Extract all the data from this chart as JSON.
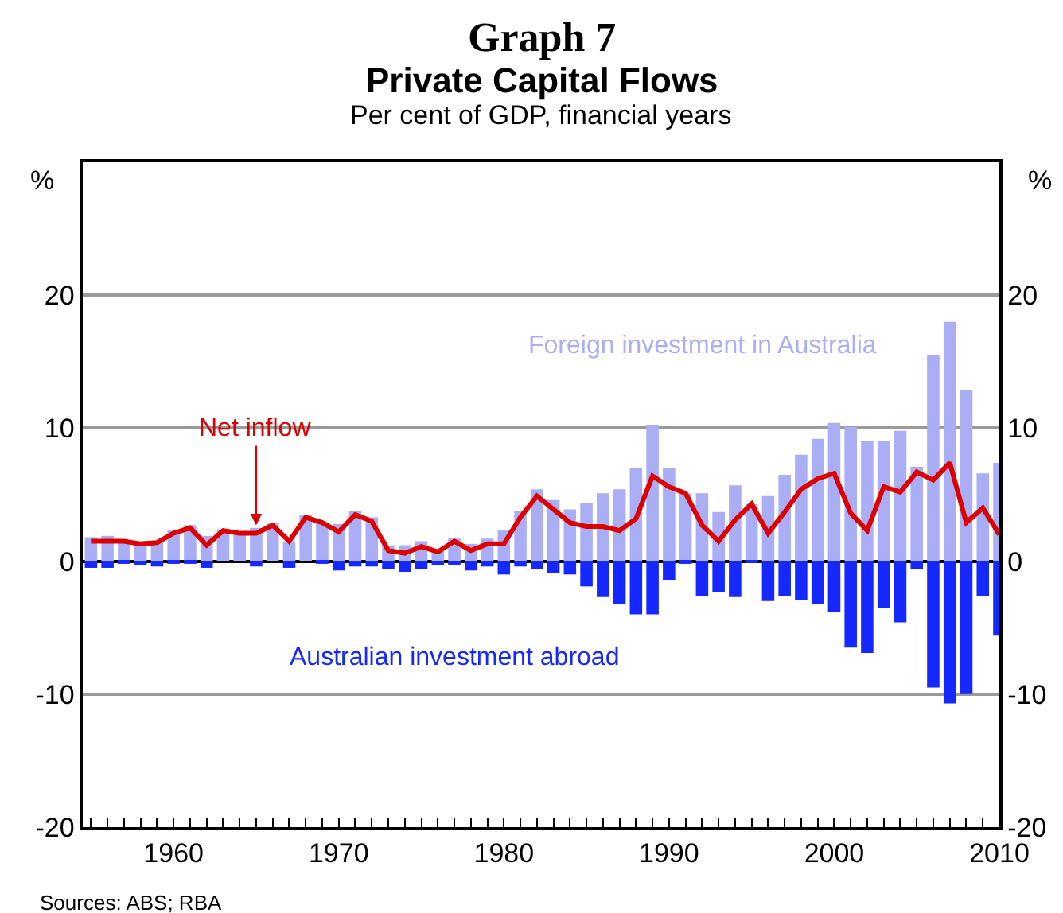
{
  "chart_data": {
    "type": "bar",
    "title": "Graph 7\nPrivate Capital Flows",
    "subtitle": "Per cent of GDP, financial years",
    "ylabel": "%",
    "y2label": "%",
    "x": [
      1955,
      1956,
      1957,
      1958,
      1959,
      1960,
      1961,
      1962,
      1963,
      1964,
      1965,
      1966,
      1967,
      1968,
      1969,
      1970,
      1971,
      1972,
      1973,
      1974,
      1975,
      1976,
      1977,
      1978,
      1979,
      1980,
      1981,
      1982,
      1983,
      1984,
      1985,
      1986,
      1987,
      1988,
      1989,
      1990,
      1991,
      1992,
      1993,
      1994,
      1995,
      1996,
      1997,
      1998,
      1999,
      2000,
      2001,
      2002,
      2003,
      2004,
      2005,
      2006,
      2007,
      2008,
      2009,
      2010
    ],
    "stacked": true,
    "series": [
      {
        "name": "Foreign investment in Australia",
        "color": "#a9aef5",
        "values": [
          1.8,
          1.9,
          1.5,
          1.5,
          1.5,
          2.3,
          2.7,
          1.9,
          2.4,
          2.1,
          2.5,
          2.9,
          1.5,
          3.5,
          2.9,
          2.8,
          3.8,
          3.3,
          1.2,
          1.2,
          1.5,
          0.8,
          1.7,
          1.3,
          1.7,
          2.3,
          3.8,
          5.4,
          4.6,
          3.9,
          4.4,
          5.1,
          5.4,
          7.0,
          10.2,
          7.0,
          5.1,
          5.1,
          3.7,
          5.7,
          4.3,
          4.9,
          6.5,
          8.0,
          9.2,
          10.4,
          10.1,
          9.0,
          9.0,
          9.8,
          7.1,
          15.5,
          18.0,
          12.9,
          6.6,
          7.4
        ]
      },
      {
        "name": "Australian investment abroad",
        "color": "#1428ff",
        "values": [
          -0.5,
          -0.5,
          -0.2,
          -0.3,
          -0.4,
          -0.2,
          -0.2,
          -0.5,
          0,
          0,
          -0.4,
          0,
          -0.5,
          0,
          -0.2,
          -0.7,
          -0.4,
          -0.4,
          -0.6,
          -0.8,
          -0.6,
          -0.3,
          -0.3,
          -0.7,
          -0.4,
          -1.0,
          -0.4,
          -0.6,
          -0.9,
          -1.0,
          -1.9,
          -2.7,
          -3.2,
          -4.0,
          -4.0,
          -1.4,
          -0.2,
          -2.6,
          -2.3,
          -2.7,
          -0.1,
          -3.0,
          -2.6,
          -2.9,
          -3.2,
          -3.8,
          -6.5,
          -6.9,
          -3.5,
          -4.6,
          -0.6,
          -9.5,
          -10.7,
          -10.0,
          -2.6,
          -5.6
        ]
      },
      {
        "name": "Net inflow",
        "type": "line",
        "color": "#dd0000",
        "values": [
          1.5,
          1.5,
          1.5,
          1.3,
          1.4,
          2.1,
          2.5,
          1.2,
          2.3,
          2.1,
          2.1,
          2.7,
          1.5,
          3.3,
          2.9,
          2.2,
          3.5,
          3.0,
          0.8,
          0.6,
          1.1,
          0.7,
          1.5,
          0.8,
          1.3,
          1.3,
          3.3,
          4.9,
          3.9,
          2.9,
          2.6,
          2.6,
          2.3,
          3.2,
          6.4,
          5.6,
          5.1,
          2.7,
          1.5,
          3.1,
          4.3,
          2.1,
          3.7,
          5.4,
          6.2,
          6.6,
          3.6,
          2.3,
          5.6,
          5.2,
          6.7,
          6.1,
          7.4,
          2.9,
          4.0,
          2.0
        ]
      }
    ],
    "xlim": [
      1954.5,
      2010
    ],
    "xticks": [
      1960,
      1970,
      1980,
      1990,
      2000,
      2010
    ],
    "ylim": [
      -20,
      30
    ],
    "yticks": [
      -20,
      -10,
      0,
      10,
      20
    ],
    "y2lim": [
      -20,
      30
    ],
    "y2ticks": [
      -20,
      -10,
      0,
      10,
      20
    ],
    "grid": "y",
    "legend": false,
    "marker": "none",
    "line_style": "solid",
    "annotations": [
      "Sources: ABS; RBA"
    ]
  }
}
